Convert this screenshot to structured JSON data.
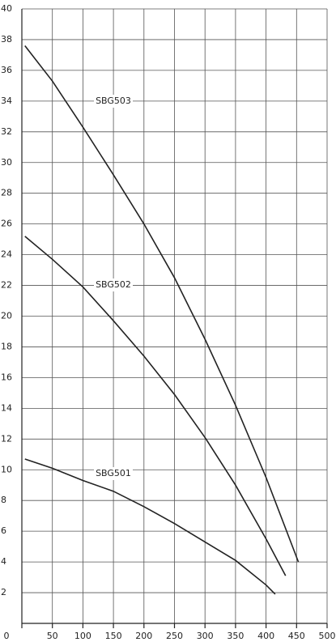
{
  "chart_data": {
    "type": "line",
    "series": [
      {
        "name": "SBG503",
        "color": "#222222",
        "x": [
          5,
          50,
          100,
          150,
          200,
          250,
          300,
          350,
          400,
          453
        ],
        "values": [
          37.6,
          35.3,
          32.3,
          29.2,
          26.0,
          22.5,
          18.5,
          14.2,
          9.5,
          4.0
        ]
      },
      {
        "name": "SBG502",
        "color": "#222222",
        "x": [
          5,
          50,
          100,
          150,
          200,
          250,
          300,
          350,
          400,
          432
        ],
        "values": [
          25.2,
          23.7,
          21.9,
          19.7,
          17.4,
          14.9,
          12.1,
          9.0,
          5.5,
          3.1
        ]
      },
      {
        "name": "SBG501",
        "color": "#222222",
        "x": [
          5,
          50,
          100,
          150,
          200,
          250,
          300,
          350,
          400,
          415
        ],
        "values": [
          10.7,
          10.1,
          9.3,
          8.6,
          7.6,
          6.5,
          5.3,
          4.1,
          2.5,
          1.9
        ]
      }
    ],
    "xlim": [
      0,
      500
    ],
    "xticks": [
      0,
      50,
      100,
      150,
      200,
      250,
      300,
      350,
      400,
      450,
      500
    ],
    "ylim": [
      0,
      40
    ],
    "yticks": [
      2,
      4,
      6,
      8,
      10,
      12,
      14,
      16,
      18,
      20,
      22,
      24,
      26,
      28,
      30,
      32,
      34,
      36,
      38,
      40
    ],
    "grid": true
  }
}
